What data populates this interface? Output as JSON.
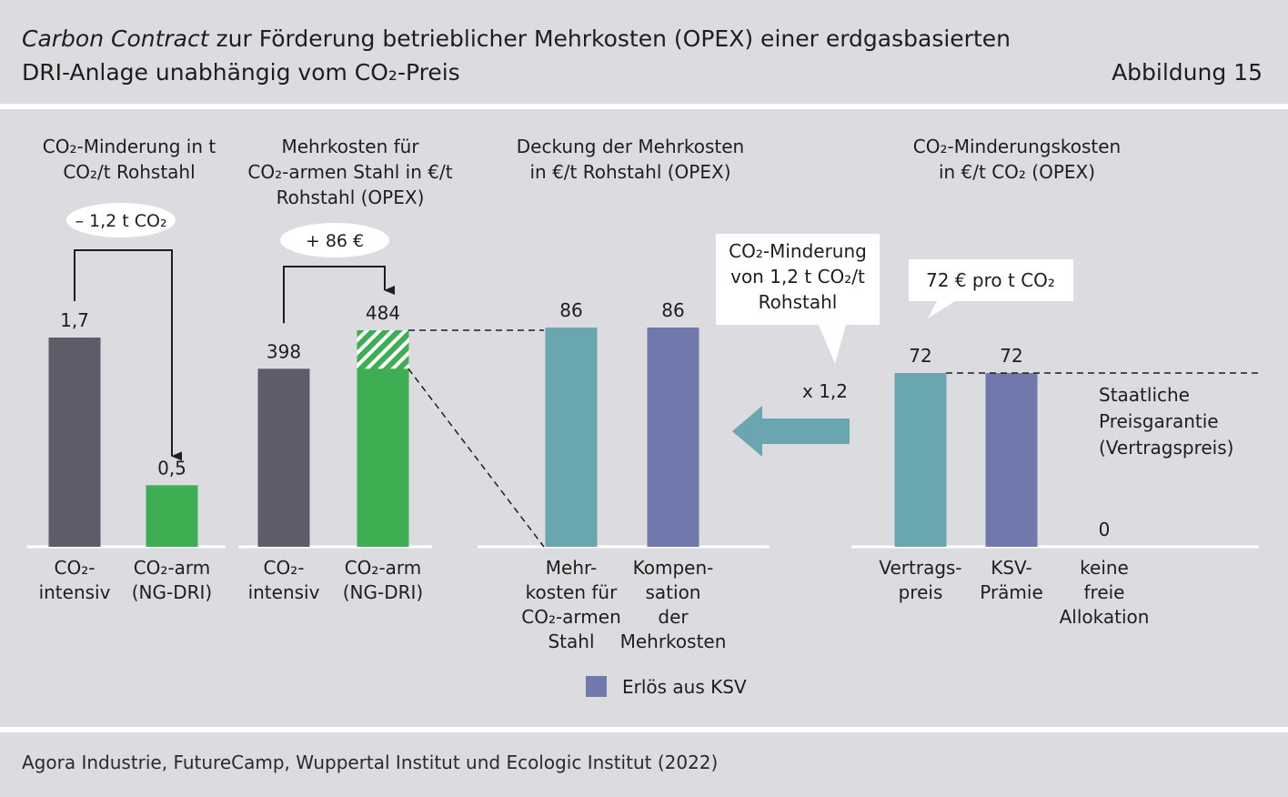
{
  "header": {
    "title_italic": "Carbon Contract",
    "title_rest": " zur Förderung betrieblicher Mehrkosten (OPEX) einer erdgasbasierten",
    "title_line2": "DRI-Anlage unabhängig vom CO₂-Preis",
    "figure_label": "Abbildung 15"
  },
  "footer": {
    "source": "Agora Industrie, FutureCamp, Wuppertal Institut und Ecologic Institut (2022)"
  },
  "colors": {
    "dark": "#5e5c69",
    "green": "#3daf52",
    "teal": "#6aa6af",
    "purple": "#7178ab",
    "background": "#dcdbe0"
  },
  "chart_data": [
    {
      "type": "bar",
      "title": [
        "CO₂-Minderung in t",
        "CO₂/t Rohstahl"
      ],
      "categories": [
        [
          "CO₂-",
          "intensiv"
        ],
        [
          "CO₂-arm",
          "(NG-DRI)"
        ]
      ],
      "values": [
        1.7,
        0.5
      ],
      "value_labels": [
        "1,7",
        "0,5"
      ],
      "colors": [
        "dark",
        "green"
      ],
      "ylim": [
        0,
        1.7
      ],
      "annotation": "– 1,2 t CO₂"
    },
    {
      "type": "bar",
      "title": [
        "Mehrkosten für",
        "CO₂-armen Stahl in €/t",
        "Rohstahl (OPEX)"
      ],
      "categories": [
        [
          "CO₂-",
          "intensiv"
        ],
        [
          "CO₂-arm",
          "(NG-DRI)"
        ]
      ],
      "values": [
        398,
        484
      ],
      "value_labels": [
        "398",
        "484"
      ],
      "colors": [
        "dark",
        "green"
      ],
      "hatched_increment": 86,
      "ylim": [
        0,
        484
      ],
      "annotation": "+ 86 €"
    },
    {
      "type": "bar",
      "title": [
        "Deckung der Mehrkosten",
        "in €/t Rohstahl (OPEX)"
      ],
      "categories": [
        [
          "Mehr-",
          "kosten für",
          "CO₂-armen",
          "Stahl"
        ],
        [
          "Kompen-",
          "sation",
          "der",
          "Mehrkosten"
        ]
      ],
      "values": [
        86,
        86
      ],
      "value_labels": [
        "86",
        "86"
      ],
      "colors": [
        "teal",
        "purple"
      ],
      "ylim": [
        0,
        86
      ]
    },
    {
      "type": "bar",
      "title": [
        "CO₂-Minderungskosten",
        "in €/t CO₂ (OPEX)"
      ],
      "categories": [
        [
          "Vertrags-",
          "preis"
        ],
        [
          "KSV-",
          "Prämie"
        ],
        [
          "keine",
          "freie",
          "Allokation"
        ]
      ],
      "values": [
        72,
        72,
        0
      ],
      "value_labels": [
        "72",
        "72",
        "0"
      ],
      "colors": [
        "teal",
        "purple",
        "teal"
      ],
      "ylim": [
        0,
        72
      ],
      "reference_line_label": [
        "Staatliche",
        "Preisgarantie",
        "(Vertragspreis)"
      ]
    }
  ],
  "callouts": {
    "reduction": [
      "CO₂-Minderung",
      "von 1,2 t CO₂/t",
      "Rohstahl"
    ],
    "multiplier": "x 1,2",
    "price": "72 € pro t CO₂"
  },
  "legend": {
    "label": "Erlös aus KSV",
    "color": "purple"
  }
}
